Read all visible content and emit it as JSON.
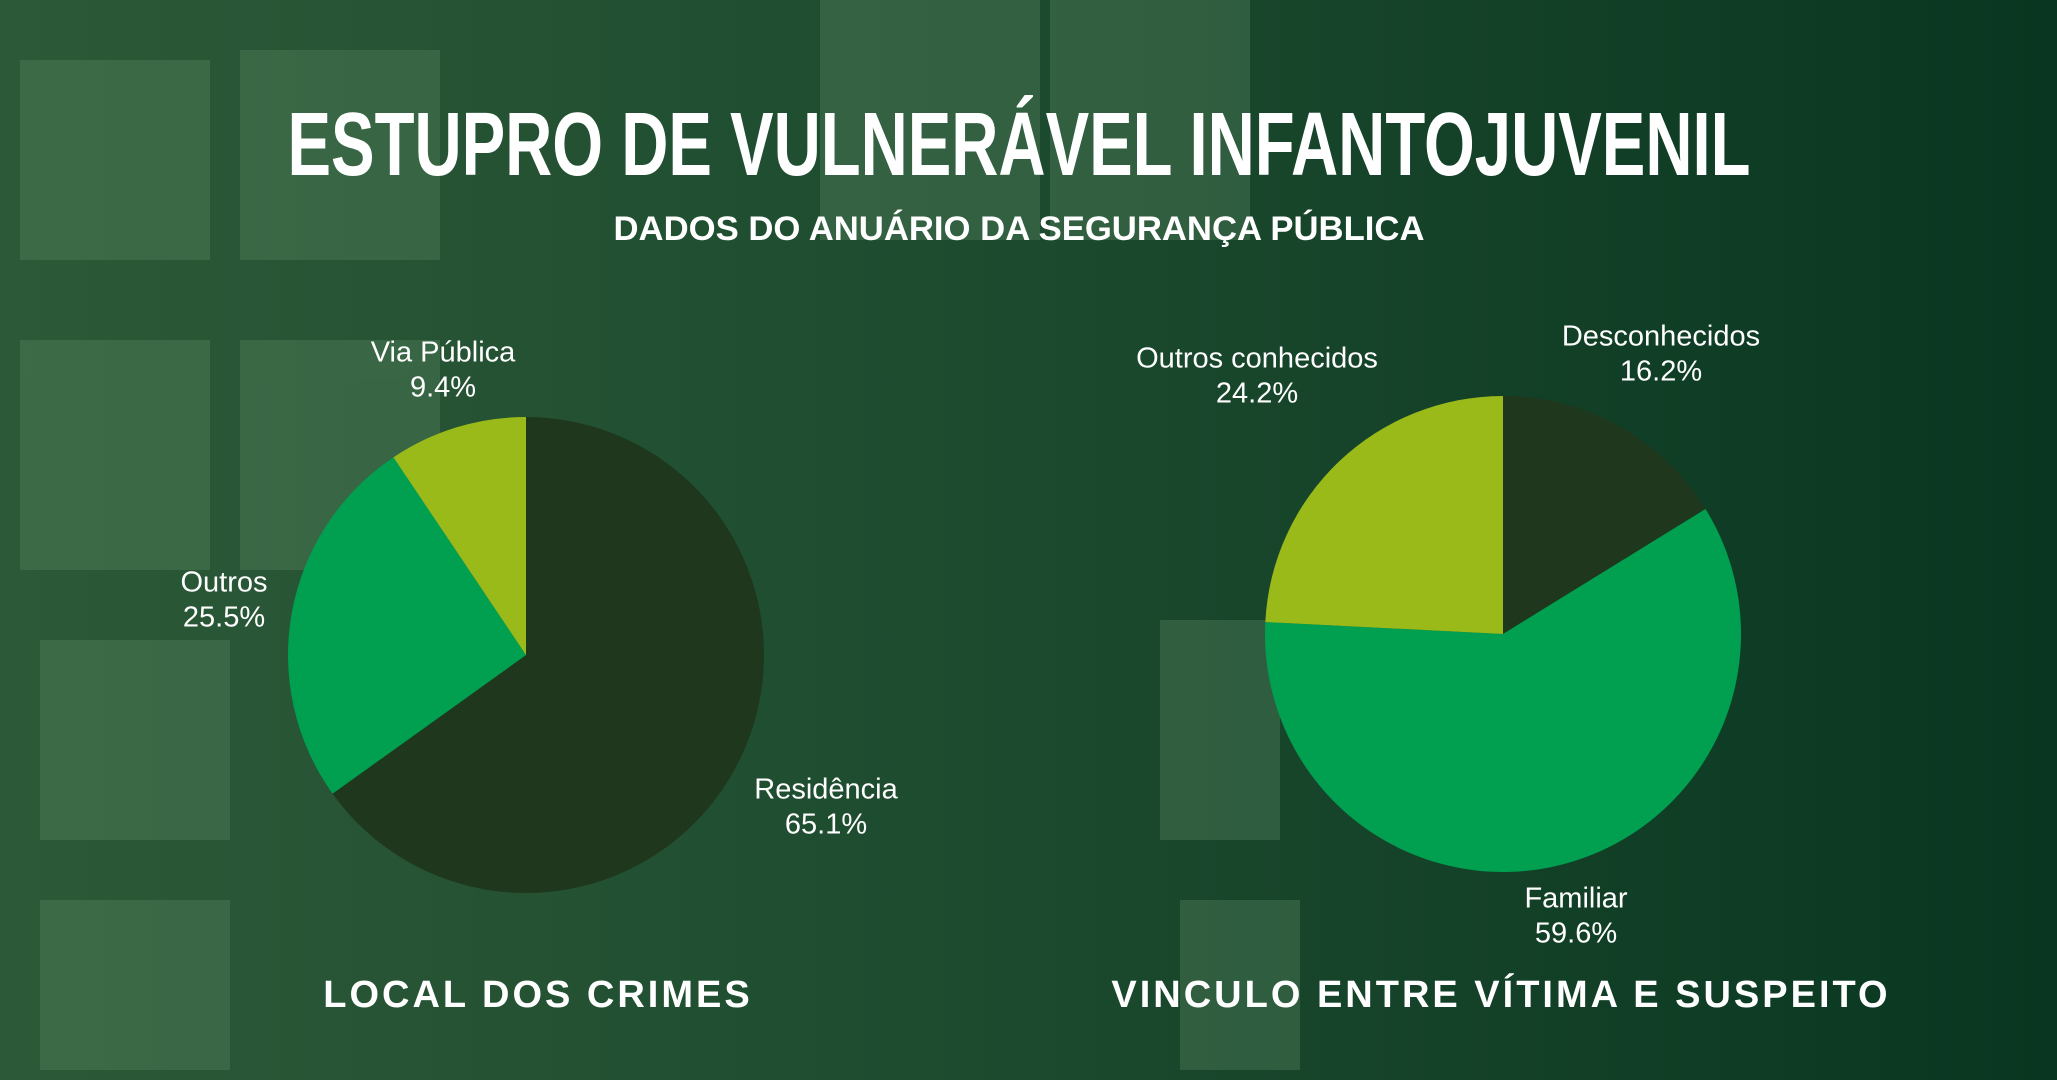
{
  "header": {
    "title": "ESTUPRO DE VULNERÁVEL INFANTOJUVENIL",
    "subtitle": "DADOS DO ANUÁRIO DA SEGURANÇA PÚBLICA"
  },
  "chart_data": [
    {
      "type": "pie",
      "title": "LOCAL DOS CRIMES",
      "categories": [
        "Residência",
        "Outros",
        "Via Pública"
      ],
      "values": [
        65.1,
        25.5,
        9.4
      ],
      "value_labels": [
        "65.1%",
        "25.5%",
        "9.4%"
      ],
      "colors": [
        "#1f381d",
        "#00a050",
        "#9aba1a"
      ]
    },
    {
      "type": "pie",
      "title": "VINCULO ENTRE VÍTIMA E SUSPEITO",
      "categories": [
        "Desconhecidos",
        "Familiar",
        "Outros conhecidos"
      ],
      "values": [
        16.2,
        59.6,
        24.2
      ],
      "value_labels": [
        "16.2%",
        "59.6%",
        "24.2%"
      ],
      "colors": [
        "#1f381d",
        "#00a050",
        "#9aba1a"
      ]
    }
  ]
}
